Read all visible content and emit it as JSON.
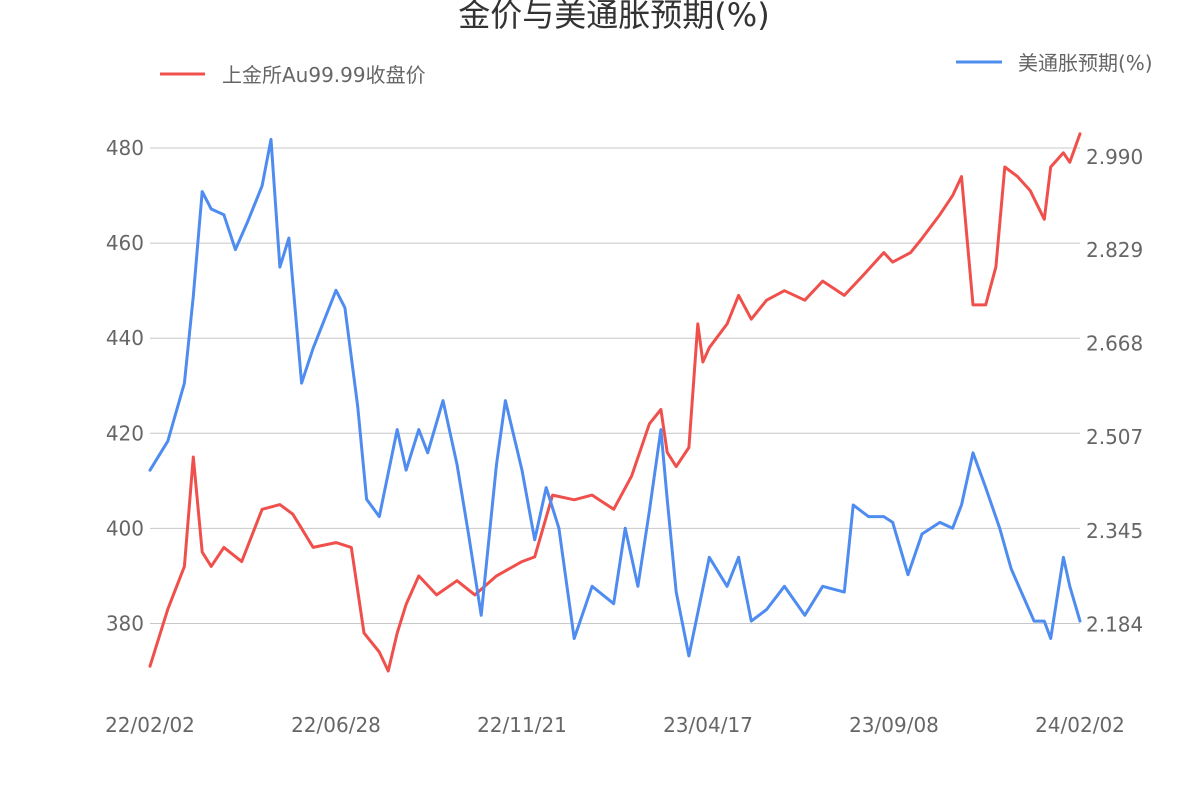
{
  "colors": {
    "left_series": "#f0504b",
    "right_series": "#4f8cf0",
    "grid": "#c8c8c8",
    "text": "#666666",
    "title": "#333333"
  },
  "chart_data": {
    "type": "line",
    "title": "金价与美通胀预期(%)",
    "xlabel": "",
    "ylabel_left": "",
    "ylabel_right": "",
    "grid": true,
    "x_ticks": [
      "22/02/02",
      "22/06/28",
      "22/11/21",
      "23/04/17",
      "23/09/08",
      "24/02/02"
    ],
    "y_left": {
      "ticks": [
        "380",
        "400",
        "420",
        "440",
        "460",
        "480"
      ],
      "ylim": [
        366,
        488
      ]
    },
    "y_right": {
      "ticks": [
        "2.184",
        "2.345",
        "2.507",
        "2.668",
        "2.829",
        "2.990"
      ],
      "ylim": [
        2.0713,
        3.0706
      ]
    },
    "x_range": [
      "2022-02-02",
      "2024-02-02"
    ],
    "series": [
      {
        "name": "上金所Au99.99收盘价",
        "axis": "left",
        "color": "#f0504b",
        "points": [
          [
            "2022-02-02",
            371
          ],
          [
            "2022-02-16",
            383
          ],
          [
            "2022-03-01",
            392
          ],
          [
            "2022-03-08",
            415
          ],
          [
            "2022-03-15",
            395
          ],
          [
            "2022-03-22",
            392
          ],
          [
            "2022-04-01",
            396
          ],
          [
            "2022-04-15",
            393
          ],
          [
            "2022-05-01",
            404
          ],
          [
            "2022-05-15",
            405
          ],
          [
            "2022-05-25",
            403
          ],
          [
            "2022-06-01",
            400
          ],
          [
            "2022-06-10",
            396
          ],
          [
            "2022-06-28",
            397
          ],
          [
            "2022-07-10",
            396
          ],
          [
            "2022-07-20",
            378
          ],
          [
            "2022-08-01",
            374
          ],
          [
            "2022-08-08",
            370
          ],
          [
            "2022-08-15",
            378
          ],
          [
            "2022-08-22",
            384
          ],
          [
            "2022-09-01",
            390
          ],
          [
            "2022-09-15",
            386
          ],
          [
            "2022-10-01",
            389
          ],
          [
            "2022-10-15",
            386
          ],
          [
            "2022-11-01",
            390
          ],
          [
            "2022-11-21",
            393
          ],
          [
            "2022-12-01",
            394
          ],
          [
            "2022-12-15",
            407
          ],
          [
            "2023-01-01",
            406
          ],
          [
            "2023-01-15",
            407
          ],
          [
            "2023-02-01",
            404
          ],
          [
            "2023-02-15",
            411
          ],
          [
            "2023-03-01",
            422
          ],
          [
            "2023-03-10",
            425
          ],
          [
            "2023-03-15",
            416
          ],
          [
            "2023-03-22",
            413
          ],
          [
            "2023-04-01",
            417
          ],
          [
            "2023-04-08",
            443
          ],
          [
            "2023-04-12",
            435
          ],
          [
            "2023-04-17",
            438
          ],
          [
            "2023-05-01",
            443
          ],
          [
            "2023-05-10",
            449
          ],
          [
            "2023-05-20",
            444
          ],
          [
            "2023-06-01",
            448
          ],
          [
            "2023-06-15",
            450
          ],
          [
            "2023-07-01",
            448
          ],
          [
            "2023-07-15",
            452
          ],
          [
            "2023-08-01",
            449
          ],
          [
            "2023-08-15",
            453
          ],
          [
            "2023-09-01",
            458
          ],
          [
            "2023-09-08",
            456
          ],
          [
            "2023-09-22",
            458
          ],
          [
            "2023-10-01",
            461
          ],
          [
            "2023-10-15",
            466
          ],
          [
            "2023-10-25",
            470
          ],
          [
            "2023-11-01",
            474
          ],
          [
            "2023-11-10",
            447
          ],
          [
            "2023-11-20",
            447
          ],
          [
            "2023-11-28",
            455
          ],
          [
            "2023-12-05",
            476
          ],
          [
            "2023-12-15",
            474
          ],
          [
            "2023-12-25",
            471
          ],
          [
            "2024-01-05",
            465
          ],
          [
            "2024-01-10",
            476
          ],
          [
            "2024-01-20",
            479
          ],
          [
            "2024-01-25",
            477
          ],
          [
            "2024-02-02",
            483
          ]
        ]
      },
      {
        "name": "美通胀预期(%)",
        "axis": "right",
        "color": "#4f8cf0",
        "points": [
          [
            "2022-02-02",
            2.45
          ],
          [
            "2022-02-16",
            2.5
          ],
          [
            "2022-03-01",
            2.6
          ],
          [
            "2022-03-08",
            2.75
          ],
          [
            "2022-03-15",
            2.93
          ],
          [
            "2022-03-22",
            2.9
          ],
          [
            "2022-04-01",
            2.89
          ],
          [
            "2022-04-10",
            2.83
          ],
          [
            "2022-04-20",
            2.88
          ],
          [
            "2022-05-01",
            2.94
          ],
          [
            "2022-05-08",
            3.02
          ],
          [
            "2022-05-15",
            2.8
          ],
          [
            "2022-05-22",
            2.85
          ],
          [
            "2022-06-01",
            2.6
          ],
          [
            "2022-06-10",
            2.66
          ],
          [
            "2022-06-28",
            2.76
          ],
          [
            "2022-07-05",
            2.73
          ],
          [
            "2022-07-15",
            2.56
          ],
          [
            "2022-07-22",
            2.4
          ],
          [
            "2022-08-01",
            2.37
          ],
          [
            "2022-08-15",
            2.52
          ],
          [
            "2022-08-22",
            2.45
          ],
          [
            "2022-09-01",
            2.52
          ],
          [
            "2022-09-08",
            2.48
          ],
          [
            "2022-09-20",
            2.57
          ],
          [
            "2022-10-01",
            2.46
          ],
          [
            "2022-10-10",
            2.34
          ],
          [
            "2022-10-20",
            2.2
          ],
          [
            "2022-11-01",
            2.46
          ],
          [
            "2022-11-08",
            2.57
          ],
          [
            "2022-11-21",
            2.45
          ],
          [
            "2022-12-01",
            2.33
          ],
          [
            "2022-12-10",
            2.42
          ],
          [
            "2022-12-20",
            2.35
          ],
          [
            "2023-01-01",
            2.16
          ],
          [
            "2023-01-15",
            2.25
          ],
          [
            "2023-02-01",
            2.22
          ],
          [
            "2023-02-10",
            2.35
          ],
          [
            "2023-02-20",
            2.25
          ],
          [
            "2023-03-01",
            2.38
          ],
          [
            "2023-03-10",
            2.52
          ],
          [
            "2023-03-15",
            2.4
          ],
          [
            "2023-03-22",
            2.24
          ],
          [
            "2023-04-01",
            2.13
          ],
          [
            "2023-04-17",
            2.3
          ],
          [
            "2023-05-01",
            2.25
          ],
          [
            "2023-05-10",
            2.3
          ],
          [
            "2023-05-20",
            2.19
          ],
          [
            "2023-06-01",
            2.21
          ],
          [
            "2023-06-15",
            2.25
          ],
          [
            "2023-07-01",
            2.2
          ],
          [
            "2023-07-15",
            2.25
          ],
          [
            "2023-08-01",
            2.24
          ],
          [
            "2023-08-08",
            2.39
          ],
          [
            "2023-08-20",
            2.37
          ],
          [
            "2023-09-01",
            2.37
          ],
          [
            "2023-09-08",
            2.36
          ],
          [
            "2023-09-20",
            2.27
          ],
          [
            "2023-10-01",
            2.34
          ],
          [
            "2023-10-15",
            2.36
          ],
          [
            "2023-10-25",
            2.35
          ],
          [
            "2023-11-01",
            2.39
          ],
          [
            "2023-11-10",
            2.48
          ],
          [
            "2023-11-20",
            2.42
          ],
          [
            "2023-12-01",
            2.35
          ],
          [
            "2023-12-10",
            2.28
          ],
          [
            "2023-12-20",
            2.23
          ],
          [
            "2023-12-28",
            2.19
          ],
          [
            "2024-01-05",
            2.19
          ],
          [
            "2024-01-10",
            2.16
          ],
          [
            "2024-01-20",
            2.3
          ],
          [
            "2024-01-25",
            2.25
          ],
          [
            "2024-02-02",
            2.19
          ]
        ]
      }
    ]
  }
}
